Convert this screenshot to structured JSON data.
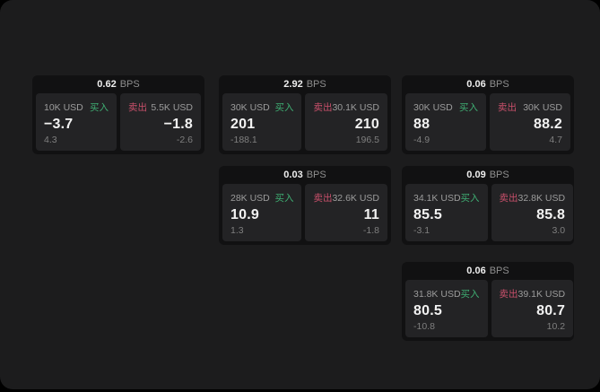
{
  "window": {
    "background": "#1c1c1d",
    "outer_background": "#000000"
  },
  "labels": {
    "buy": "买入",
    "sell": "卖出",
    "bps_unit": "BPS"
  },
  "colors": {
    "buy_green": "#3fae73",
    "sell_red": "#c9506b",
    "card_background": "#111112",
    "panel_background": "#232325",
    "primary_text": "#f2f2f2",
    "secondary_text": "#9c9c9c",
    "tertiary_text": "#7f7f7f"
  },
  "cards": [
    {
      "bps": "0.62",
      "buy": {
        "amount": "10K USD",
        "price": "−3.7",
        "sub": "4.3"
      },
      "sell": {
        "amount": "5.5K USD",
        "price": "−1.8",
        "sub": "-2.6"
      }
    },
    {
      "bps": "2.92",
      "buy": {
        "amount": "30K USD",
        "price": "201",
        "sub": "-188.1"
      },
      "sell": {
        "amount": "30.1K USD",
        "price": "210",
        "sub": "196.5"
      }
    },
    {
      "bps": "0.06",
      "buy": {
        "amount": "30K USD",
        "price": "88",
        "sub": "-4.9"
      },
      "sell": {
        "amount": "30K USD",
        "price": "88.2",
        "sub": "4.7"
      }
    },
    {
      "bps": "0.03",
      "buy": {
        "amount": "28K USD",
        "price": "10.9",
        "sub": "1.3"
      },
      "sell": {
        "amount": "32.6K USD",
        "price": "11",
        "sub": "-1.8"
      }
    },
    {
      "bps": "0.09",
      "buy": {
        "amount": "34.1K USD",
        "price": "85.5",
        "sub": "-3.1"
      },
      "sell": {
        "amount": "32.8K USD",
        "price": "85.8",
        "sub": "3.0"
      }
    },
    {
      "bps": "0.06",
      "buy": {
        "amount": "31.8K USD",
        "price": "80.5",
        "sub": "-10.8"
      },
      "sell": {
        "amount": "39.1K USD",
        "price": "80.7",
        "sub": "10.2"
      }
    }
  ]
}
